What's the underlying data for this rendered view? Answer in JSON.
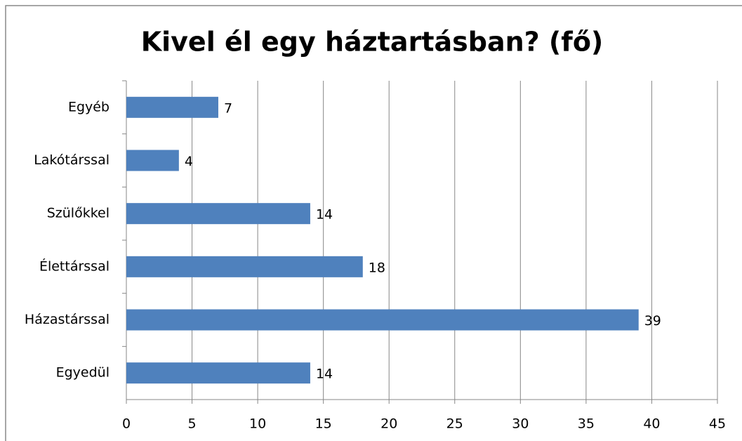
{
  "chart_data": {
    "type": "barh",
    "title": "Kivel él egy háztartásban? (fő)",
    "categories": [
      "Egyéb",
      "Lakótárssal",
      "Szülőkkel",
      "Élettárssal",
      "Házastárssal",
      "Egyedül"
    ],
    "values": [
      7,
      4,
      14,
      18,
      39,
      14
    ],
    "color": "#4f81bd",
    "xlim": [
      0,
      45
    ],
    "xticks": [
      0,
      5,
      10,
      15,
      20,
      25,
      30,
      35,
      40,
      45
    ],
    "grid": true
  }
}
